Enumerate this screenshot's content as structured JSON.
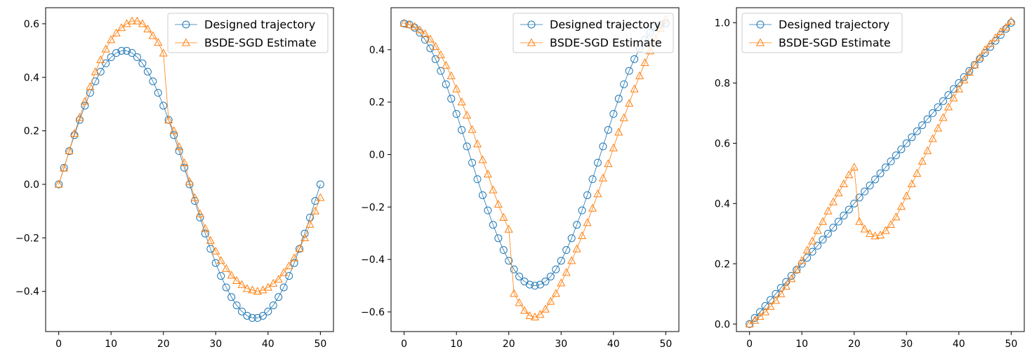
{
  "chart_data": [
    {
      "type": "line",
      "title": "",
      "xlabel": "",
      "ylabel": "",
      "xlim": [
        -2.5,
        52.5
      ],
      "ylim": [
        -0.55,
        0.66
      ],
      "xticks": [
        0,
        10,
        20,
        30,
        40,
        50
      ],
      "yticks": [
        -0.4,
        -0.2,
        0.0,
        0.2,
        0.4,
        0.6
      ],
      "xtick_labels": [
        "0",
        "10",
        "20",
        "30",
        "40",
        "50"
      ],
      "ytick_labels": [
        "−0.4",
        "−0.2",
        "0.0",
        "0.2",
        "0.4",
        "0.6"
      ],
      "legend_position": "top-right",
      "x": [
        0,
        1,
        2,
        3,
        4,
        5,
        6,
        7,
        8,
        9,
        10,
        11,
        12,
        13,
        14,
        15,
        16,
        17,
        18,
        19,
        20,
        21,
        22,
        23,
        24,
        25,
        26,
        27,
        28,
        29,
        30,
        31,
        32,
        33,
        34,
        35,
        36,
        37,
        38,
        39,
        40,
        41,
        42,
        43,
        44,
        45,
        46,
        47,
        48,
        49,
        50
      ],
      "series": [
        {
          "name": "Designed trajectory",
          "color": "#1f77b4",
          "marker": "circle",
          "values": [
            0.0,
            0.062,
            0.124,
            0.184,
            0.241,
            0.294,
            0.342,
            0.385,
            0.421,
            0.452,
            0.475,
            0.491,
            0.499,
            0.499,
            0.491,
            0.475,
            0.452,
            0.421,
            0.385,
            0.342,
            0.294,
            0.241,
            0.184,
            0.124,
            0.062,
            0.0,
            -0.062,
            -0.124,
            -0.184,
            -0.241,
            -0.294,
            -0.342,
            -0.385,
            -0.421,
            -0.452,
            -0.475,
            -0.491,
            -0.499,
            -0.499,
            -0.491,
            -0.475,
            -0.452,
            -0.421,
            -0.385,
            -0.342,
            -0.294,
            -0.241,
            -0.184,
            -0.124,
            -0.062,
            0.0
          ]
        },
        {
          "name": "BSDE-SGD Estimate",
          "color": "#ff7f0e",
          "marker": "triangle",
          "values": [
            0.0,
            0.06,
            0.125,
            0.19,
            0.25,
            0.31,
            0.365,
            0.42,
            0.465,
            0.505,
            0.54,
            0.565,
            0.585,
            0.6,
            0.61,
            0.61,
            0.6,
            0.58,
            0.555,
            0.53,
            0.49,
            0.24,
            0.2,
            0.14,
            0.08,
            0.01,
            -0.05,
            -0.11,
            -0.165,
            -0.21,
            -0.25,
            -0.285,
            -0.315,
            -0.34,
            -0.36,
            -0.375,
            -0.39,
            -0.395,
            -0.4,
            -0.395,
            -0.385,
            -0.37,
            -0.355,
            -0.33,
            -0.305,
            -0.275,
            -0.24,
            -0.2,
            -0.15,
            -0.1,
            -0.05
          ]
        }
      ]
    },
    {
      "type": "line",
      "title": "",
      "xlabel": "",
      "ylabel": "",
      "xlim": [
        -2.5,
        52.5
      ],
      "ylim": [
        -0.675,
        0.56
      ],
      "xticks": [
        0,
        10,
        20,
        30,
        40,
        50
      ],
      "yticks": [
        -0.6,
        -0.4,
        -0.2,
        0.0,
        0.2,
        0.4
      ],
      "xtick_labels": [
        "0",
        "10",
        "20",
        "30",
        "40",
        "50"
      ],
      "ytick_labels": [
        "−0.6",
        "−0.4",
        "−0.2",
        "0.0",
        "0.2",
        "0.4"
      ],
      "legend_position": "top-right",
      "x": [
        0,
        1,
        2,
        3,
        4,
        5,
        6,
        7,
        8,
        9,
        10,
        11,
        12,
        13,
        14,
        15,
        16,
        17,
        18,
        19,
        20,
        21,
        22,
        23,
        24,
        25,
        26,
        27,
        28,
        29,
        30,
        31,
        32,
        33,
        34,
        35,
        36,
        37,
        38,
        39,
        40,
        41,
        42,
        43,
        44,
        45,
        46,
        47,
        48,
        49,
        50
      ],
      "series": [
        {
          "name": "Designed trajectory",
          "color": "#1f77b4",
          "marker": "circle",
          "values": [
            0.5,
            0.496,
            0.484,
            0.465,
            0.438,
            0.405,
            0.364,
            0.319,
            0.268,
            0.213,
            0.155,
            0.094,
            0.031,
            -0.031,
            -0.094,
            -0.155,
            -0.213,
            -0.268,
            -0.319,
            -0.364,
            -0.405,
            -0.438,
            -0.465,
            -0.484,
            -0.496,
            -0.5,
            -0.496,
            -0.484,
            -0.465,
            -0.438,
            -0.405,
            -0.364,
            -0.319,
            -0.268,
            -0.213,
            -0.155,
            -0.094,
            -0.031,
            0.031,
            0.094,
            0.155,
            0.213,
            0.268,
            0.319,
            0.364,
            0.405,
            0.438,
            0.465,
            0.484,
            0.496,
            0.5
          ]
        },
        {
          "name": "BSDE-SGD Estimate",
          "color": "#ff7f0e",
          "marker": "triangle",
          "values": [
            0.5,
            0.495,
            0.488,
            0.475,
            0.46,
            0.44,
            0.412,
            0.38,
            0.34,
            0.3,
            0.25,
            0.2,
            0.15,
            0.095,
            0.04,
            -0.02,
            -0.075,
            -0.135,
            -0.19,
            -0.24,
            -0.285,
            -0.53,
            -0.565,
            -0.595,
            -0.615,
            -0.62,
            -0.61,
            -0.59,
            -0.56,
            -0.53,
            -0.49,
            -0.45,
            -0.405,
            -0.36,
            -0.31,
            -0.26,
            -0.205,
            -0.15,
            -0.09,
            -0.035,
            0.025,
            0.085,
            0.14,
            0.195,
            0.25,
            0.3,
            0.35,
            0.395,
            0.44,
            0.48,
            0.515
          ]
        }
      ]
    },
    {
      "type": "line",
      "title": "",
      "xlabel": "",
      "ylabel": "",
      "xlim": [
        -2.5,
        52.5
      ],
      "ylim": [
        -0.025,
        1.05
      ],
      "xticks": [
        0,
        10,
        20,
        30,
        40,
        50
      ],
      "yticks": [
        0.0,
        0.2,
        0.4,
        0.6,
        0.8,
        1.0
      ],
      "xtick_labels": [
        "0",
        "10",
        "20",
        "30",
        "40",
        "50"
      ],
      "ytick_labels": [
        "0.0",
        "0.2",
        "0.4",
        "0.6",
        "0.8",
        "1.0"
      ],
      "legend_position": "top-left",
      "x": [
        0,
        1,
        2,
        3,
        4,
        5,
        6,
        7,
        8,
        9,
        10,
        11,
        12,
        13,
        14,
        15,
        16,
        17,
        18,
        19,
        20,
        21,
        22,
        23,
        24,
        25,
        26,
        27,
        28,
        29,
        30,
        31,
        32,
        33,
        34,
        35,
        36,
        37,
        38,
        39,
        40,
        41,
        42,
        43,
        44,
        45,
        46,
        47,
        48,
        49,
        50
      ],
      "series": [
        {
          "name": "Designed trajectory",
          "color": "#1f77b4",
          "marker": "circle",
          "values": [
            0.0,
            0.02,
            0.04,
            0.06,
            0.08,
            0.1,
            0.12,
            0.14,
            0.16,
            0.18,
            0.2,
            0.22,
            0.24,
            0.26,
            0.28,
            0.3,
            0.32,
            0.34,
            0.36,
            0.38,
            0.4,
            0.42,
            0.44,
            0.46,
            0.48,
            0.5,
            0.52,
            0.54,
            0.56,
            0.58,
            0.6,
            0.62,
            0.64,
            0.66,
            0.68,
            0.7,
            0.72,
            0.74,
            0.76,
            0.78,
            0.8,
            0.82,
            0.84,
            0.86,
            0.88,
            0.9,
            0.92,
            0.94,
            0.96,
            0.98,
            1.0
          ]
        },
        {
          "name": "BSDE-SGD Estimate",
          "color": "#ff7f0e",
          "marker": "triangle",
          "values": [
            0.0,
            0.012,
            0.025,
            0.04,
            0.058,
            0.078,
            0.1,
            0.125,
            0.15,
            0.18,
            0.21,
            0.245,
            0.275,
            0.31,
            0.34,
            0.375,
            0.405,
            0.435,
            0.465,
            0.495,
            0.52,
            0.34,
            0.315,
            0.3,
            0.292,
            0.295,
            0.31,
            0.33,
            0.355,
            0.39,
            0.425,
            0.465,
            0.5,
            0.54,
            0.575,
            0.615,
            0.65,
            0.685,
            0.72,
            0.75,
            0.78,
            0.81,
            0.835,
            0.86,
            0.885,
            0.91,
            0.93,
            0.95,
            0.97,
            0.985,
            1.005
          ]
        }
      ]
    }
  ]
}
